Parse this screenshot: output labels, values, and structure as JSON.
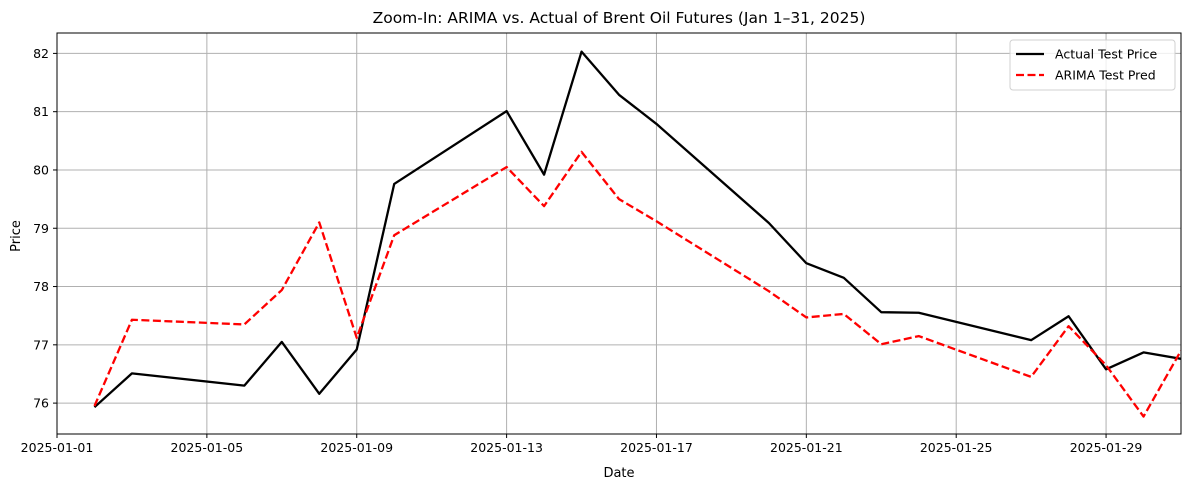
{
  "chart_data": {
    "type": "line",
    "title": "Zoom-In: ARIMA vs. Actual of Brent Oil Futures (Jan 1–31, 2025)",
    "xlabel": "Date",
    "ylabel": "Price",
    "xlim": [
      "2025-01-01",
      "2025-01-31"
    ],
    "ylim": [
      75.47,
      82.35
    ],
    "x_ticks": [
      "2025-01-01",
      "2025-01-05",
      "2025-01-09",
      "2025-01-13",
      "2025-01-17",
      "2025-01-21",
      "2025-01-25",
      "2025-01-29"
    ],
    "y_ticks": [
      76,
      77,
      78,
      79,
      80,
      81,
      82
    ],
    "grid": true,
    "legend_position": "top-right",
    "series": [
      {
        "name": "Actual Test Price",
        "color": "#000000",
        "style": "solid",
        "points": [
          [
            "2025-01-02",
            75.93
          ],
          [
            "2025-01-03",
            76.51
          ],
          [
            "2025-01-06",
            76.3
          ],
          [
            "2025-01-07",
            77.05
          ],
          [
            "2025-01-08",
            76.16
          ],
          [
            "2025-01-09",
            76.92
          ],
          [
            "2025-01-10",
            79.76
          ],
          [
            "2025-01-13",
            81.01
          ],
          [
            "2025-01-14",
            79.92
          ],
          [
            "2025-01-15",
            82.03
          ],
          [
            "2025-01-16",
            81.29
          ],
          [
            "2025-01-17",
            80.79
          ],
          [
            "2025-01-20",
            79.09
          ],
          [
            "2025-01-21",
            78.4
          ],
          [
            "2025-01-22",
            78.15
          ],
          [
            "2025-01-23",
            77.56
          ],
          [
            "2025-01-24",
            77.55
          ],
          [
            "2025-01-27",
            77.08
          ],
          [
            "2025-01-28",
            77.49
          ],
          [
            "2025-01-29",
            76.58
          ],
          [
            "2025-01-30",
            76.87
          ],
          [
            "2025-01-31",
            76.76
          ]
        ]
      },
      {
        "name": "ARIMA Test Pred",
        "color": "#ff0000",
        "style": "dashed",
        "points": [
          [
            "2025-01-02",
            75.95
          ],
          [
            "2025-01-03",
            77.43
          ],
          [
            "2025-01-06",
            77.35
          ],
          [
            "2025-01-07",
            77.94
          ],
          [
            "2025-01-08",
            79.1
          ],
          [
            "2025-01-09",
            77.12
          ],
          [
            "2025-01-10",
            78.88
          ],
          [
            "2025-01-13",
            80.05
          ],
          [
            "2025-01-14",
            79.38
          ],
          [
            "2025-01-15",
            80.31
          ],
          [
            "2025-01-16",
            79.5
          ],
          [
            "2025-01-17",
            79.12
          ],
          [
            "2025-01-20",
            77.92
          ],
          [
            "2025-01-21",
            77.47
          ],
          [
            "2025-01-22",
            77.53
          ],
          [
            "2025-01-23",
            77.01
          ],
          [
            "2025-01-24",
            77.15
          ],
          [
            "2025-01-27",
            76.45
          ],
          [
            "2025-01-28",
            77.32
          ],
          [
            "2025-01-29",
            76.65
          ],
          [
            "2025-01-30",
            75.77
          ],
          [
            "2025-01-31",
            76.9
          ]
        ]
      }
    ]
  }
}
